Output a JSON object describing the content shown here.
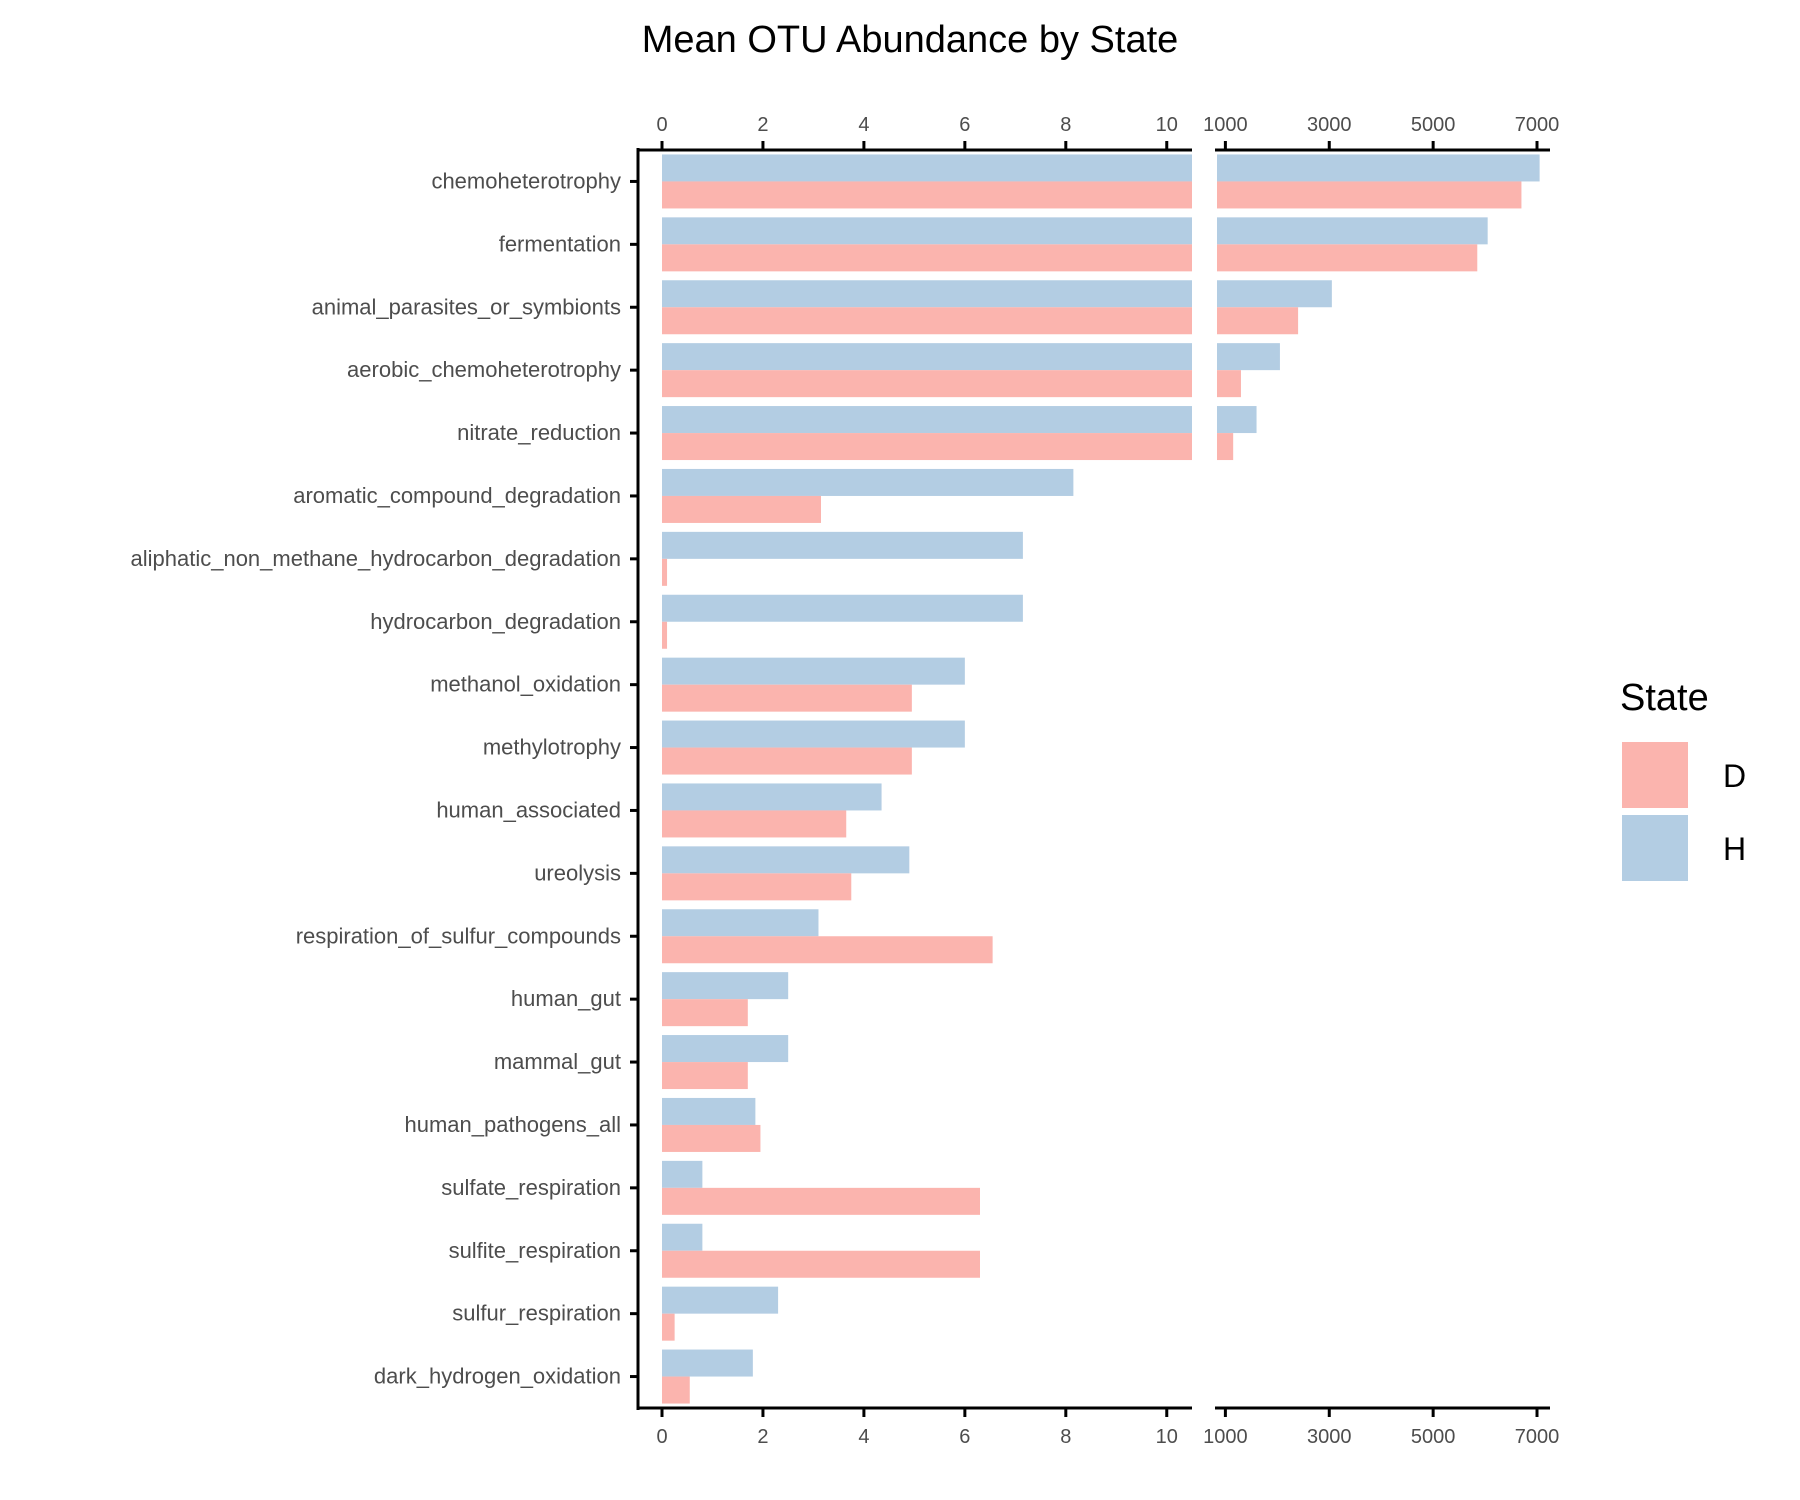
{
  "chart_data": {
    "type": "bar",
    "orientation": "horizontal",
    "title": "Mean OTU Abundance by State",
    "xlabel": "",
    "ylabel": "",
    "axis_break": {
      "lower_range": [
        0,
        10.5
      ],
      "upper_range": [
        800,
        7250
      ]
    },
    "lower_ticks": [
      "0",
      "2",
      "4",
      "6",
      "8",
      "10"
    ],
    "upper_ticks": [
      "1000",
      "3000",
      "5000",
      "7000"
    ],
    "grid": false,
    "legend": {
      "title": "State",
      "position": "right"
    },
    "categories": [
      "chemoheterotrophy",
      "fermentation",
      "animal_parasites_or_symbionts",
      "aerobic_chemoheterotrophy",
      "nitrate_reduction",
      "aromatic_compound_degradation",
      "aliphatic_non_methane_hydrocarbon_degradation",
      "hydrocarbon_degradation",
      "methanol_oxidation",
      "methylotrophy",
      "human_associated",
      "ureolysis",
      "respiration_of_sulfur_compounds",
      "human_gut",
      "mammal_gut",
      "human_pathogens_all",
      "sulfate_respiration",
      "sulfite_respiration",
      "sulfur_respiration",
      "dark_hydrogen_oxidation"
    ],
    "series": [
      {
        "name": "D",
        "color": "#fbb4ae",
        "values": [
          6700,
          5850,
          2400,
          1300,
          1150,
          3.15,
          0.1,
          0.1,
          4.95,
          4.95,
          3.65,
          3.75,
          6.55,
          1.7,
          1.7,
          1.95,
          6.3,
          6.3,
          0.25,
          0.55
        ]
      },
      {
        "name": "H",
        "color": "#b3cde3",
        "values": [
          7050,
          6050,
          3050,
          2050,
          1600,
          8.15,
          7.15,
          7.15,
          6.0,
          6.0,
          4.35,
          4.9,
          3.1,
          2.5,
          2.5,
          1.85,
          0.8,
          0.8,
          2.3,
          1.8
        ]
      }
    ]
  }
}
